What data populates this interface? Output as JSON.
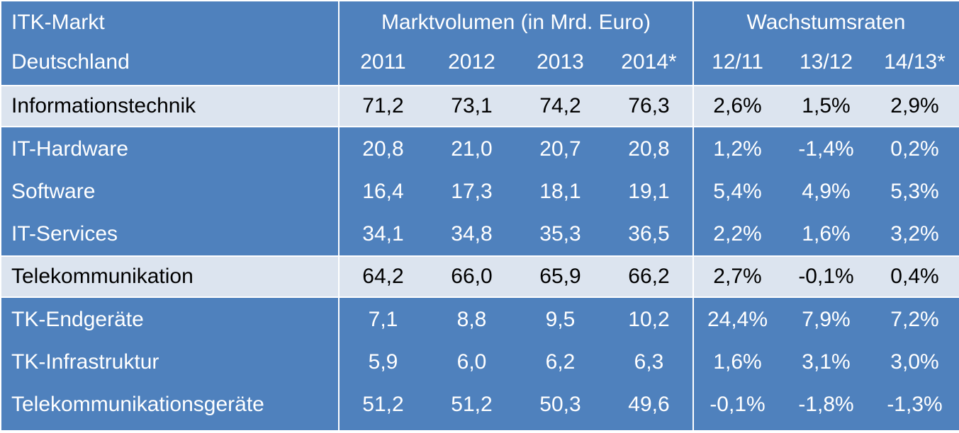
{
  "chart_data": {
    "type": "table",
    "header": {
      "row1": [
        "ITK-Markt",
        "Marktvolumen  (in Mrd. Euro)",
        "Wachstumsraten"
      ],
      "row2": [
        "Deutschland",
        "2011",
        "2012",
        "2013",
        "2014*",
        "12/11",
        "13/12",
        "14/13*"
      ]
    },
    "rows": [
      {
        "label": "Informationstechnik",
        "values": [
          "71,2",
          "73,1",
          "74,2",
          "76,3"
        ],
        "growth": [
          "2,6%",
          "1,5%",
          "2,9%"
        ],
        "highlight": true
      },
      {
        "label": "IT-Hardware",
        "values": [
          "20,8",
          "21,0",
          "20,7",
          "20,8"
        ],
        "growth": [
          "1,2%",
          "-1,4%",
          "0,2%"
        ],
        "highlight": false
      },
      {
        "label": "Software",
        "values": [
          "16,4",
          "17,3",
          "18,1",
          "19,1"
        ],
        "growth": [
          "5,4%",
          "4,9%",
          "5,3%"
        ],
        "highlight": false
      },
      {
        "label": "IT-Services",
        "values": [
          "34,1",
          "34,8",
          "35,3",
          "36,5"
        ],
        "growth": [
          "2,2%",
          "1,6%",
          "3,2%"
        ],
        "highlight": false
      },
      {
        "label": "Telekommunikation",
        "values": [
          "64,2",
          "66,0",
          "65,9",
          "66,2"
        ],
        "growth": [
          "2,7%",
          "-0,1%",
          "0,4%"
        ],
        "highlight": true
      },
      {
        "label": "TK-Endgeräte",
        "values": [
          "7,1",
          "8,8",
          "9,5",
          "10,2"
        ],
        "growth": [
          "24,4%",
          "7,9%",
          "7,2%"
        ],
        "highlight": false
      },
      {
        "label": "TK-Infrastruktur",
        "values": [
          "5,9",
          "6,0",
          "6,2",
          "6,3"
        ],
        "growth": [
          "1,6%",
          "3,1%",
          "3,0%"
        ],
        "highlight": false
      },
      {
        "label": "Telekommunikationsgeräte",
        "values": [
          "51,2",
          "51,2",
          "50,3",
          "49,6"
        ],
        "growth": [
          "-0,1%",
          "-1,8%",
          "-1,3%"
        ],
        "highlight": false
      }
    ],
    "colors": {
      "header_bg": "#4f81bd",
      "highlight_bg": "#dce4ef",
      "grid": "#ffffff"
    }
  }
}
